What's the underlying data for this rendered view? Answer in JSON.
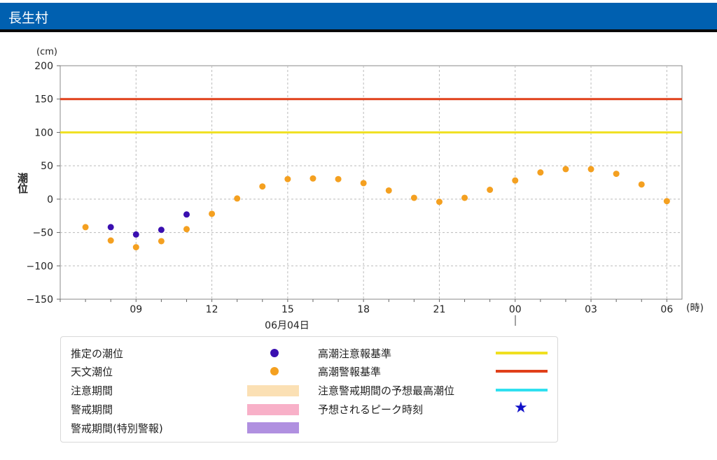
{
  "header": {
    "title": "長生村"
  },
  "chart_data": {
    "type": "scatter",
    "unit_label": "(cm)",
    "ylabel": "潮位",
    "xunit_label": "(時)",
    "date_label": "06月04日",
    "ylim": [
      -150,
      200
    ],
    "yticks": [
      200,
      150,
      100,
      50,
      0,
      -50,
      -100,
      -150
    ],
    "x_ticks": [
      {
        "h": 9,
        "label": "09"
      },
      {
        "h": 12,
        "label": "12"
      },
      {
        "h": 15,
        "label": "15"
      },
      {
        "h": 18,
        "label": "18"
      },
      {
        "h": 21,
        "label": "21"
      },
      {
        "h": 24,
        "label": "00"
      },
      {
        "h": 27,
        "label": "03"
      },
      {
        "h": 30,
        "label": "06"
      }
    ],
    "xlim": [
      6,
      30.6
    ],
    "grid": true,
    "series": [
      {
        "name": "推定の潮位",
        "color": "#3a0fb0",
        "points": [
          [
            8,
            -42
          ],
          [
            9,
            -53
          ],
          [
            10,
            -46
          ],
          [
            11,
            -23
          ]
        ]
      },
      {
        "name": "天文潮位",
        "color": "#f4a020",
        "points": [
          [
            7,
            -42
          ],
          [
            8,
            -62
          ],
          [
            9,
            -72
          ],
          [
            10,
            -63
          ],
          [
            11,
            -45
          ],
          [
            12,
            -22
          ],
          [
            13,
            1
          ],
          [
            14,
            19
          ],
          [
            15,
            30
          ],
          [
            16,
            31
          ],
          [
            17,
            30
          ],
          [
            18,
            24
          ],
          [
            19,
            13
          ],
          [
            20,
            2
          ],
          [
            21,
            -4
          ],
          [
            22,
            2
          ],
          [
            23,
            14
          ],
          [
            24,
            28
          ],
          [
            25,
            40
          ],
          [
            26,
            45
          ],
          [
            27,
            45
          ],
          [
            28,
            38
          ],
          [
            29,
            22
          ],
          [
            30,
            -3
          ]
        ]
      }
    ],
    "thresholds": [
      {
        "name": "高潮注意報基準",
        "value": 100,
        "color": "#f0e020"
      },
      {
        "name": "高潮警報基準",
        "value": 150,
        "color": "#e0401a"
      }
    ]
  },
  "legend": {
    "estimated": {
      "label": "推定の潮位",
      "color": "#3a0fb0"
    },
    "astronomical": {
      "label": "天文潮位",
      "color": "#f4a020"
    },
    "caution_period": {
      "label": "注意期間",
      "color": "#fbe0b4"
    },
    "warning_period": {
      "label": "警戒期間",
      "color": "#f8b0c8"
    },
    "special_warning_period": {
      "label": "警戒期間(特別警報)",
      "color": "#b090e0"
    },
    "advisory_standard": {
      "label": "高潮注意報基準",
      "color": "#f0e020"
    },
    "warning_standard": {
      "label": "高潮警報基準",
      "color": "#e0401a"
    },
    "predicted_max": {
      "label": "注意警戒期間の予想最高潮位",
      "color": "#30e0f0"
    },
    "peak_time": {
      "label": "予想されるピーク時刻",
      "color": "#1010c8",
      "icon": "star-icon"
    }
  }
}
